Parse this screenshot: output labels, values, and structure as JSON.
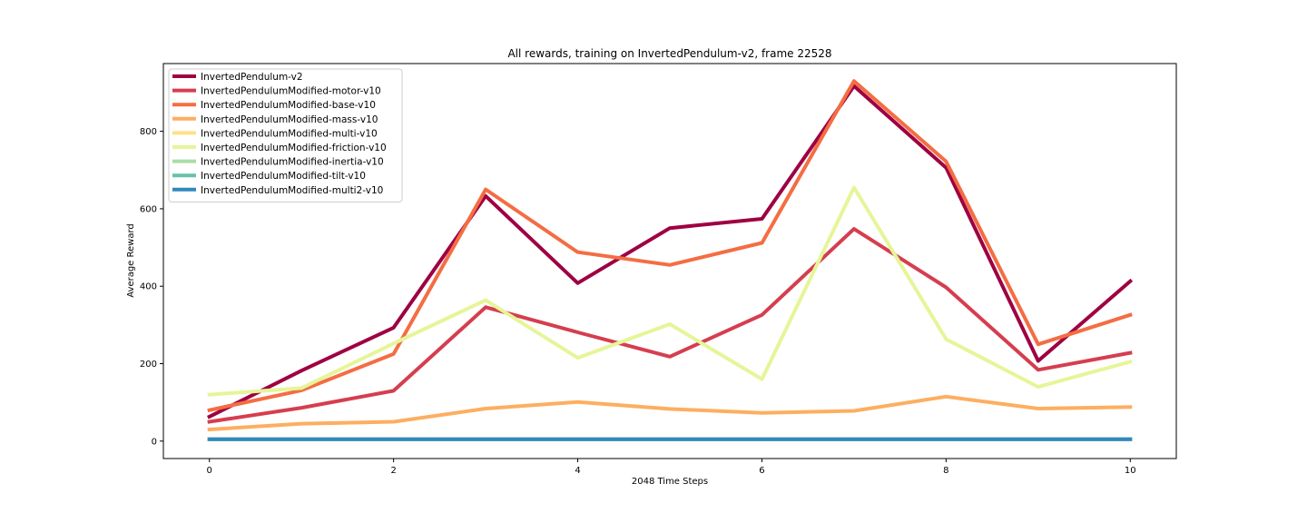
{
  "chart_data": {
    "type": "line",
    "title": "All rewards, training on InvertedPendulum-v2, frame 22528",
    "xlabel": "2048 Time Steps",
    "ylabel": "Average Reward",
    "xlim": [
      -0.5,
      10.5
    ],
    "ylim": [
      -45,
      975
    ],
    "xticks": [
      0,
      2,
      4,
      6,
      8,
      10
    ],
    "yticks": [
      0,
      200,
      400,
      600,
      800
    ],
    "grid": false,
    "legend_position": "top-left",
    "x": [
      0,
      1,
      2,
      3,
      4,
      5,
      6,
      7,
      8,
      9,
      10
    ],
    "series": [
      {
        "name": "InvertedPendulum-v2",
        "color": "#9e0142",
        "values": [
          63,
          182,
          293,
          633,
          408,
          550,
          574,
          917,
          706,
          207,
          413
        ]
      },
      {
        "name": "InvertedPendulumModified-motor-v10",
        "color": "#d53e4f",
        "values": [
          50,
          86,
          130,
          346,
          281,
          218,
          326,
          548,
          397,
          184,
          228
        ]
      },
      {
        "name": "InvertedPendulumModified-base-v10",
        "color": "#f46d43",
        "values": [
          80,
          131,
          225,
          650,
          488,
          455,
          512,
          930,
          722,
          250,
          326
        ]
      },
      {
        "name": "InvertedPendulumModified-mass-v10",
        "color": "#fdae61",
        "values": [
          30,
          45,
          50,
          84,
          101,
          83,
          73,
          78,
          115,
          84,
          88
        ]
      },
      {
        "name": "InvertedPendulumModified-multi-v10",
        "color": "#fee08b",
        "values": [
          5,
          5,
          5,
          5,
          5,
          5,
          5,
          5,
          5,
          5,
          5
        ]
      },
      {
        "name": "InvertedPendulumModified-friction-v10",
        "color": "#e6f598",
        "values": [
          120,
          137,
          252,
          364,
          215,
          302,
          160,
          655,
          263,
          140,
          205
        ]
      },
      {
        "name": "InvertedPendulumModified-inertia-v10",
        "color": "#abdda4",
        "values": [
          5,
          5,
          5,
          5,
          5,
          5,
          5,
          5,
          5,
          5,
          5
        ]
      },
      {
        "name": "InvertedPendulumModified-tilt-v10",
        "color": "#66c2a5",
        "values": [
          5,
          5,
          5,
          5,
          5,
          5,
          5,
          5,
          5,
          5,
          5
        ]
      },
      {
        "name": "InvertedPendulumModified-multi2-v10",
        "color": "#3288bd",
        "values": [
          5,
          5,
          5,
          5,
          5,
          5,
          5,
          5,
          5,
          5,
          5
        ]
      }
    ]
  }
}
